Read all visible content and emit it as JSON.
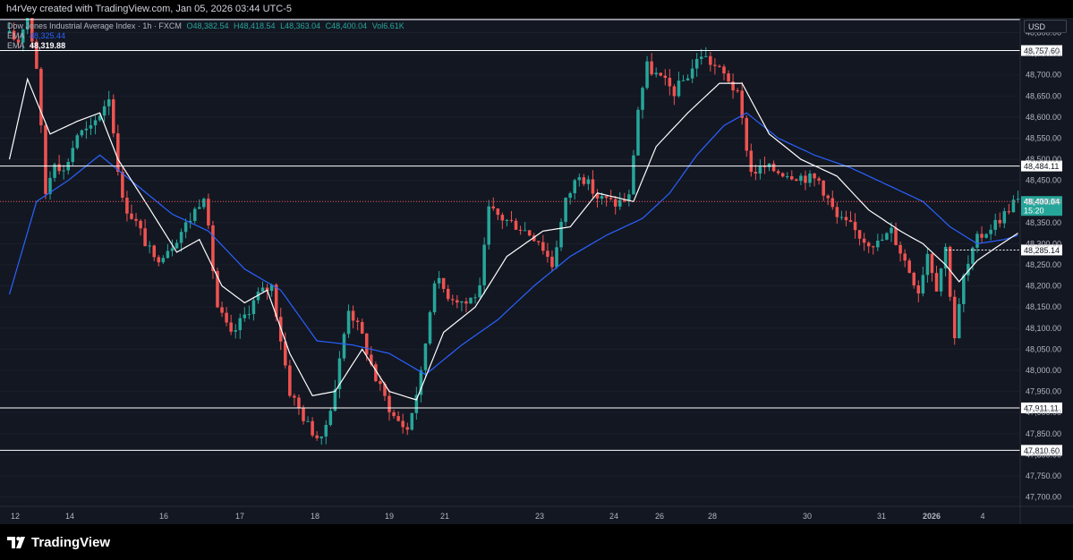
{
  "header": {
    "caption": "h4rVey created with TradingView.com, Jan 05, 2026 03:44 UTC-5"
  },
  "legend": {
    "symbol": "Dow Jones Industrial Average Index · 1h · FXCM",
    "open": "O48,382.54",
    "high": "H48,418.54",
    "low": "L48,363.04",
    "close": "C48,400.04",
    "volume": "Vol6.61K",
    "ema1_label": "EMA",
    "ema1_value": "48,325.44",
    "ema2_label": "EMA",
    "ema2_value": "48,319.88"
  },
  "currency_label": "USD",
  "footer": {
    "brand": "TradingView"
  },
  "colors": {
    "up": "#26a69a",
    "down": "#ef5350",
    "ema_fast": "#ffffff",
    "ema_slow": "#2962ff",
    "background": "#131722",
    "axis_text": "#b2b5be",
    "current_price_badge": "#26a69a"
  },
  "chart_data": {
    "type": "candlestick",
    "title": "Dow Jones Industrial Average Index · 1h · FXCM",
    "x_ticks": [
      "12",
      "14",
      "16",
      "17",
      "18",
      "19",
      "21",
      "23",
      "24",
      "26",
      "28",
      "30",
      "31",
      "2026",
      "4"
    ],
    "y_ticks": [
      "48,800.00",
      "48,750.00",
      "48,700.00",
      "48,650.00",
      "48,600.00",
      "48,550.00",
      "48,500.00",
      "48,450.00",
      "48,400.00",
      "48,350.00",
      "48,300.00",
      "48,250.00",
      "48,200.00",
      "48,150.00",
      "48,100.00",
      "48,050.00",
      "48,000.00",
      "47,950.00",
      "47,900.00",
      "47,850.00",
      "47,800.00",
      "47,750.00",
      "47,700.00"
    ],
    "ylim": [
      47680,
      48835
    ],
    "price_anchors": [
      {
        "t": 0,
        "v": 48800
      },
      {
        "t": 3,
        "v": 48780
      },
      {
        "t": 5,
        "v": 48850
      },
      {
        "t": 7,
        "v": 48720
      },
      {
        "t": 9,
        "v": 48420
      },
      {
        "t": 11,
        "v": 48500
      },
      {
        "t": 13,
        "v": 48470
      },
      {
        "t": 16,
        "v": 48560
      },
      {
        "t": 19,
        "v": 48570
      },
      {
        "t": 23,
        "v": 48650
      },
      {
        "t": 26,
        "v": 48400
      },
      {
        "t": 29,
        "v": 48350
      },
      {
        "t": 33,
        "v": 48260
      },
      {
        "t": 37,
        "v": 48300
      },
      {
        "t": 41,
        "v": 48360
      },
      {
        "t": 44,
        "v": 48420
      },
      {
        "t": 47,
        "v": 48150
      },
      {
        "t": 50,
        "v": 48080
      },
      {
        "t": 53,
        "v": 48130
      },
      {
        "t": 56,
        "v": 48180
      },
      {
        "t": 59,
        "v": 48200
      },
      {
        "t": 63,
        "v": 47950
      },
      {
        "t": 67,
        "v": 47870
      },
      {
        "t": 70,
        "v": 47830
      },
      {
        "t": 73,
        "v": 47960
      },
      {
        "t": 76,
        "v": 48150
      },
      {
        "t": 79,
        "v": 48080
      },
      {
        "t": 82,
        "v": 47980
      },
      {
        "t": 86,
        "v": 47890
      },
      {
        "t": 89,
        "v": 47860
      },
      {
        "t": 92,
        "v": 47990
      },
      {
        "t": 95,
        "v": 48220
      },
      {
        "t": 98,
        "v": 48180
      },
      {
        "t": 102,
        "v": 48160
      },
      {
        "t": 105,
        "v": 48190
      },
      {
        "t": 107,
        "v": 48380
      },
      {
        "t": 110,
        "v": 48360
      },
      {
        "t": 114,
        "v": 48340
      },
      {
        "t": 118,
        "v": 48310
      },
      {
        "t": 121,
        "v": 48250
      },
      {
        "t": 124,
        "v": 48400
      },
      {
        "t": 127,
        "v": 48470
      },
      {
        "t": 131,
        "v": 48410
      },
      {
        "t": 135,
        "v": 48395
      },
      {
        "t": 138,
        "v": 48410
      },
      {
        "t": 140,
        "v": 48620
      },
      {
        "t": 142,
        "v": 48720
      },
      {
        "t": 145,
        "v": 48690
      },
      {
        "t": 148,
        "v": 48660
      },
      {
        "t": 151,
        "v": 48700
      },
      {
        "t": 154,
        "v": 48750
      },
      {
        "t": 157,
        "v": 48720
      },
      {
        "t": 160,
        "v": 48690
      },
      {
        "t": 162,
        "v": 48650
      },
      {
        "t": 165,
        "v": 48470
      },
      {
        "t": 168,
        "v": 48480
      },
      {
        "t": 172,
        "v": 48470
      },
      {
        "t": 176,
        "v": 48460
      },
      {
        "t": 180,
        "v": 48450
      },
      {
        "t": 184,
        "v": 48360
      },
      {
        "t": 187,
        "v": 48340
      },
      {
        "t": 190,
        "v": 48310
      },
      {
        "t": 193,
        "v": 48300
      },
      {
        "t": 196,
        "v": 48330
      },
      {
        "t": 199,
        "v": 48260
      },
      {
        "t": 202,
        "v": 48190
      },
      {
        "t": 204,
        "v": 48280
      },
      {
        "t": 206,
        "v": 48200
      },
      {
        "t": 208,
        "v": 48290
      },
      {
        "t": 210,
        "v": 48080
      },
      {
        "t": 212,
        "v": 48220
      },
      {
        "t": 215,
        "v": 48310
      },
      {
        "t": 218,
        "v": 48340
      },
      {
        "t": 221,
        "v": 48370
      },
      {
        "t": 223,
        "v": 48400
      }
    ],
    "total_bars": 224,
    "ema_fast_anchors": [
      {
        "t": 0,
        "v": 48500
      },
      {
        "t": 4,
        "v": 48690
      },
      {
        "t": 9,
        "v": 48560
      },
      {
        "t": 15,
        "v": 48590
      },
      {
        "t": 20,
        "v": 48610
      },
      {
        "t": 24,
        "v": 48500
      },
      {
        "t": 30,
        "v": 48400
      },
      {
        "t": 37,
        "v": 48280
      },
      {
        "t": 42,
        "v": 48310
      },
      {
        "t": 47,
        "v": 48200
      },
      {
        "t": 52,
        "v": 48160
      },
      {
        "t": 57,
        "v": 48190
      },
      {
        "t": 62,
        "v": 48040
      },
      {
        "t": 67,
        "v": 47940
      },
      {
        "t": 72,
        "v": 47950
      },
      {
        "t": 78,
        "v": 48050
      },
      {
        "t": 84,
        "v": 47950
      },
      {
        "t": 90,
        "v": 47930
      },
      {
        "t": 96,
        "v": 48090
      },
      {
        "t": 103,
        "v": 48150
      },
      {
        "t": 110,
        "v": 48270
      },
      {
        "t": 118,
        "v": 48330
      },
      {
        "t": 124,
        "v": 48340
      },
      {
        "t": 130,
        "v": 48420
      },
      {
        "t": 138,
        "v": 48400
      },
      {
        "t": 143,
        "v": 48530
      },
      {
        "t": 150,
        "v": 48610
      },
      {
        "t": 157,
        "v": 48680
      },
      {
        "t": 162,
        "v": 48680
      },
      {
        "t": 168,
        "v": 48560
      },
      {
        "t": 175,
        "v": 48500
      },
      {
        "t": 183,
        "v": 48460
      },
      {
        "t": 190,
        "v": 48380
      },
      {
        "t": 197,
        "v": 48330
      },
      {
        "t": 202,
        "v": 48300
      },
      {
        "t": 207,
        "v": 48250
      },
      {
        "t": 210,
        "v": 48210
      },
      {
        "t": 214,
        "v": 48260
      },
      {
        "t": 218,
        "v": 48290
      },
      {
        "t": 223,
        "v": 48325
      }
    ],
    "ema_slow_anchors": [
      {
        "t": 0,
        "v": 48180
      },
      {
        "t": 6,
        "v": 48400
      },
      {
        "t": 13,
        "v": 48450
      },
      {
        "t": 20,
        "v": 48510
      },
      {
        "t": 28,
        "v": 48440
      },
      {
        "t": 36,
        "v": 48370
      },
      {
        "t": 44,
        "v": 48330
      },
      {
        "t": 52,
        "v": 48240
      },
      {
        "t": 60,
        "v": 48190
      },
      {
        "t": 68,
        "v": 48070
      },
      {
        "t": 76,
        "v": 48060
      },
      {
        "t": 84,
        "v": 48040
      },
      {
        "t": 92,
        "v": 47990
      },
      {
        "t": 100,
        "v": 48060
      },
      {
        "t": 108,
        "v": 48120
      },
      {
        "t": 116,
        "v": 48200
      },
      {
        "t": 124,
        "v": 48270
      },
      {
        "t": 132,
        "v": 48320
      },
      {
        "t": 140,
        "v": 48360
      },
      {
        "t": 146,
        "v": 48420
      },
      {
        "t": 152,
        "v": 48510
      },
      {
        "t": 158,
        "v": 48580
      },
      {
        "t": 163,
        "v": 48610
      },
      {
        "t": 170,
        "v": 48550
      },
      {
        "t": 178,
        "v": 48510
      },
      {
        "t": 186,
        "v": 48480
      },
      {
        "t": 194,
        "v": 48440
      },
      {
        "t": 202,
        "v": 48400
      },
      {
        "t": 208,
        "v": 48340
      },
      {
        "t": 214,
        "v": 48300
      },
      {
        "t": 220,
        "v": 48310
      },
      {
        "t": 223,
        "v": 48320
      }
    ],
    "horizontal_levels": [
      48831,
      48757.6,
      48484.11,
      47911.11,
      47810.6
    ],
    "level_labels": [
      "",
      "48,757.60",
      "48,484.11",
      "47,911.11",
      "47,810.60"
    ],
    "dashed_level": {
      "value": 48285.14,
      "label": "48,285.14",
      "start_bar": 207
    },
    "current_price": {
      "value": 48400.04,
      "label": "48,400.04",
      "countdown": "15:20"
    }
  }
}
